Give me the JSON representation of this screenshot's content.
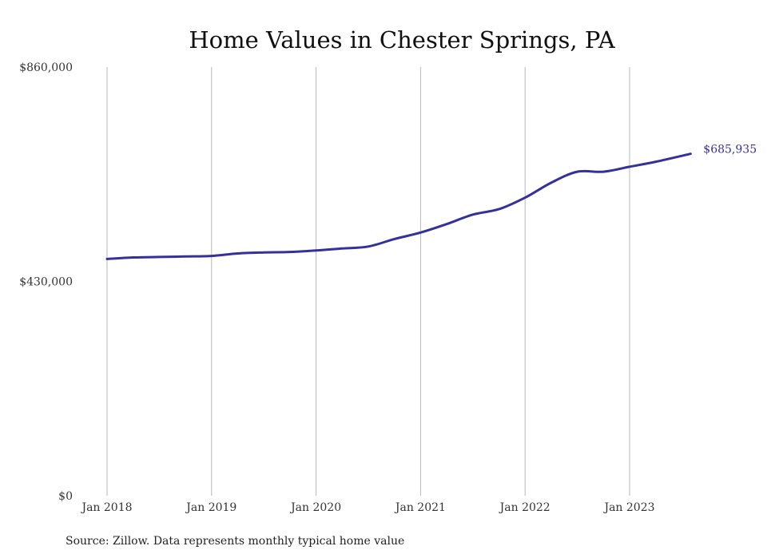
{
  "chart_data": {
    "type": "line",
    "title": "Home Values in Chester Springs, PA",
    "source": "Source: Zillow. Data represents monthly typical home value",
    "ylim": [
      0,
      860000
    ],
    "y_ticks": [
      {
        "value": 0,
        "label": "$0"
      },
      {
        "value": 430000,
        "label": "$430,000"
      },
      {
        "value": 860000,
        "label": "$860,000"
      }
    ],
    "x_ticks": [
      {
        "value": "2018-01",
        "label": "Jan 2018"
      },
      {
        "value": "2019-01",
        "label": "Jan 2019"
      },
      {
        "value": "2020-01",
        "label": "Jan 2020"
      },
      {
        "value": "2021-01",
        "label": "Jan 2021"
      },
      {
        "value": "2022-01",
        "label": "Jan 2022"
      },
      {
        "value": "2023-01",
        "label": "Jan 2023"
      }
    ],
    "grid": "vertical",
    "line_color": "#35309b",
    "end_label": "$685,935",
    "series": [
      {
        "x": [
          "2018-01",
          "2018-04",
          "2018-07",
          "2018-10",
          "2019-01",
          "2019-04",
          "2019-07",
          "2019-10",
          "2020-01",
          "2020-04",
          "2020-07",
          "2020-10",
          "2021-01",
          "2021-04",
          "2021-07",
          "2021-10",
          "2022-01",
          "2022-04",
          "2022-07",
          "2022-10",
          "2023-01",
          "2023-04",
          "2023-08"
        ],
        "y": [
          475000,
          478000,
          479000,
          480000,
          481000,
          486000,
          488000,
          489000,
          492000,
          496000,
          500000,
          515000,
          528000,
          545000,
          564000,
          575000,
          598000,
          628000,
          650000,
          650000,
          660000,
          670000,
          685935
        ]
      }
    ]
  }
}
